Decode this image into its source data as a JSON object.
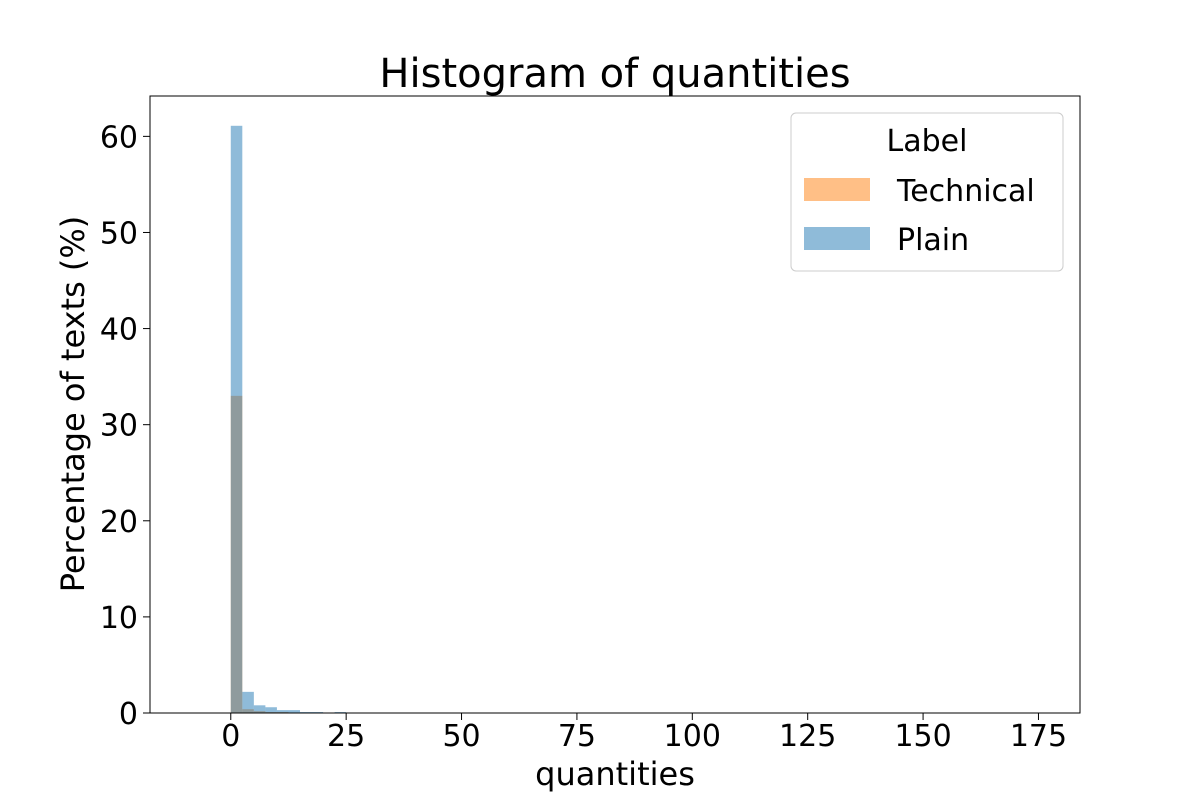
{
  "chart_data": {
    "type": "bar",
    "title": "Histogram of quantities",
    "xlabel": "quantities",
    "ylabel": "Percentage of texts (%)",
    "xlim": [
      -17.5,
      184
    ],
    "ylim": [
      0,
      64.2
    ],
    "grid": false,
    "legend": {
      "title": "Label",
      "position": "top-right",
      "entries": [
        "Technical",
        "Plain"
      ]
    },
    "x_ticks": [
      0,
      25,
      50,
      75,
      100,
      125,
      150,
      175
    ],
    "x_tick_labels": [
      "0",
      "25",
      "50",
      "75",
      "100",
      "125",
      "150",
      "175"
    ],
    "y_ticks": [
      0,
      10,
      20,
      30,
      40,
      50,
      60
    ],
    "y_tick_labels": [
      "0",
      "10",
      "20",
      "30",
      "40",
      "50",
      "60"
    ],
    "bin_width": 2.5,
    "bin_starts": [
      0,
      2.5,
      5,
      7.5,
      10,
      12.5,
      15,
      17.5,
      20,
      22.5
    ],
    "series": [
      {
        "name": "Technical",
        "color": "#ff7f0e",
        "opacity": 0.5,
        "values": [
          33.0,
          0.4,
          0.2,
          0.1,
          0.1,
          0.05,
          0.05,
          0.0,
          0.0,
          0.0
        ]
      },
      {
        "name": "Plain",
        "color": "#1f77b4",
        "opacity": 0.5,
        "values": [
          61.1,
          2.2,
          0.8,
          0.6,
          0.3,
          0.3,
          0.1,
          0.1,
          0.05,
          0.1
        ]
      }
    ]
  }
}
